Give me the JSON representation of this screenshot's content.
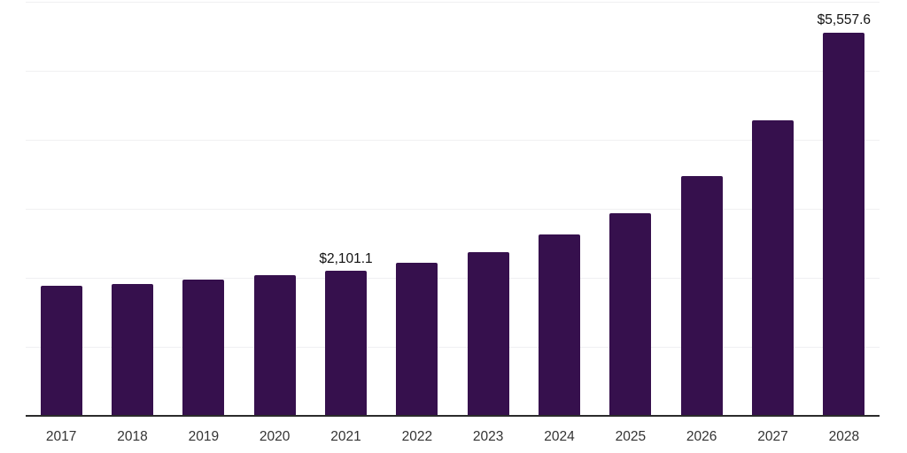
{
  "chart_data": {
    "type": "bar",
    "title": "",
    "xlabel": "",
    "ylabel": "",
    "categories": [
      "2017",
      "2018",
      "2019",
      "2020",
      "2021",
      "2022",
      "2023",
      "2024",
      "2025",
      "2026",
      "2027",
      "2028"
    ],
    "values": [
      1880,
      1915,
      1975,
      2040,
      2101.1,
      2213,
      2370,
      2625,
      2935,
      3475,
      4285,
      5557.6
    ],
    "value_labels": [
      "",
      "",
      "",
      "",
      "$2,101.1",
      "",
      "",
      "",
      "",
      "",
      "",
      "$5,557.6"
    ],
    "annotations": [
      {
        "category": "2021",
        "text": "$2,101.1"
      },
      {
        "category": "2028",
        "text": "$5,557.6"
      }
    ],
    "ylim": [
      0,
      6000
    ],
    "gridline_step": 1000,
    "grid": true,
    "y_tick_labels_visible": false,
    "legend_position": "none",
    "colors": {
      "bar": "#36104d",
      "gridline": "#f0f0f2",
      "axis_line": "#2b2b2b",
      "tick_text": "#333333",
      "value_label_text": "#111111",
      "background": "#ffffff"
    }
  }
}
